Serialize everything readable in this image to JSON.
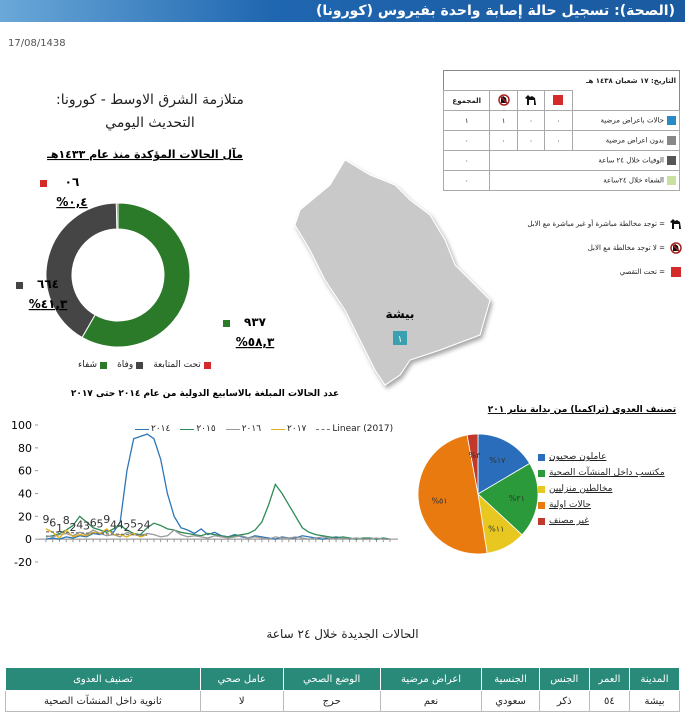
{
  "header": {
    "title": "(الصحة): تسجيل حالة إصابة واحدة بفيروس (كورونا)",
    "date": "17/08/1438"
  },
  "summary": {
    "title": "متلازمة الشرق الاوسط - كورونا:",
    "subtitle": "التحديث اليومي"
  },
  "status_table": {
    "date": "التاريخ: ١٧ شعبان ١٤٣٨ هـ",
    "total_header": "المجموع",
    "rows": [
      [
        "حالات باعراض مرضية",
        "٠",
        "٠",
        "١",
        "١"
      ],
      [
        "بدون اعراض مرضية",
        "٠",
        "٠",
        "٠",
        "٠"
      ],
      [
        "الوفيات خلال ٢٤ ساعة",
        "٠"
      ],
      [
        "الشفاء خلال ٢٤ساعة",
        "٠"
      ]
    ]
  },
  "icon_legend": [
    "= توجد مخالطة مباشرة أو غير مباشرة مع الابل",
    "= لا توجد مخالطة مع الابل",
    "= تحت التقصي"
  ],
  "map": {
    "city": "بيشة",
    "marker": "١"
  },
  "new_cases": {
    "title": "الحالات الجديدة خلال ٢٤ ساعة",
    "columns": [
      "المدينة",
      "العمر",
      "الجنس",
      "الجنسية",
      "اعراض مرضية",
      "الوضع الصحي",
      "عامل صحي",
      "تصنيف العدوى"
    ],
    "rows": [
      [
        "بيشة",
        "٥٤",
        "ذكر",
        "سعودي",
        "نعم",
        "حرج",
        "لا",
        "ثانوية داخل المنشآت الصحية"
      ]
    ]
  },
  "chart_data": [
    {
      "type": "donut",
      "title": "مآل الحالات المؤكدة منذ عام ١٤٣٣هـ",
      "categories": [
        "شفاء",
        "وفاة",
        "تحت المتابعة"
      ],
      "values": [
        937,
        664,
        6
      ],
      "value_labels": [
        "٩٣٧",
        "٦٦٤",
        "٠٦"
      ],
      "percents": [
        58.3,
        41.3,
        0.4
      ],
      "percent_labels": [
        "%٥٨,٣",
        "%٤١,٣",
        "%٠,٤"
      ],
      "colors": [
        "#2a7a2a",
        "#454545",
        "#d42a2a"
      ]
    },
    {
      "type": "line",
      "title": "عدد الحالات المبلغة بالاسابيع الدولية من عام ٢٠١٤ حتى ٢٠١٧",
      "x": [
        1,
        2,
        3,
        4,
        5,
        6,
        7,
        8,
        9,
        10,
        11,
        12,
        13,
        14,
        15,
        16,
        17,
        18,
        19,
        20,
        21,
        22,
        23,
        24,
        25,
        26,
        27,
        28,
        29,
        30,
        31,
        32,
        33,
        34,
        35,
        36,
        37,
        38,
        39,
        40,
        41,
        42,
        43,
        44,
        45,
        46,
        47,
        48,
        49,
        50,
        51,
        52
      ],
      "xlim": [
        1,
        52
      ],
      "ylim": [
        -20,
        100
      ],
      "yticks": [
        -20,
        0,
        20,
        40,
        60,
        80,
        100
      ],
      "grid": false,
      "series": [
        {
          "name": "٢٠١٤",
          "color": "#2e75b6",
          "values": [
            0,
            1,
            0,
            2,
            1,
            3,
            2,
            5,
            4,
            8,
            6,
            15,
            60,
            88,
            90,
            92,
            88,
            70,
            40,
            20,
            10,
            8,
            5,
            9,
            4,
            6,
            3,
            2,
            4,
            2,
            1,
            3,
            2,
            1,
            0,
            2,
            1,
            1,
            3,
            2,
            1,
            0,
            1,
            2,
            1,
            0,
            1,
            0,
            1,
            0,
            1,
            0
          ]
        },
        {
          "name": "٢٠١٥",
          "color": "#2e8b57",
          "values": [
            2,
            3,
            5,
            8,
            12,
            20,
            15,
            10,
            8,
            6,
            9,
            12,
            8,
            5,
            4,
            10,
            14,
            12,
            9,
            8,
            6,
            5,
            4,
            3,
            5,
            4,
            3,
            2,
            3,
            4,
            5,
            8,
            15,
            30,
            48,
            40,
            30,
            20,
            10,
            6,
            4,
            3,
            2,
            1,
            2,
            1,
            0,
            1,
            1,
            0,
            1,
            0
          ]
        },
        {
          "name": "٢٠١٦",
          "color": "#9a9a9a",
          "values": [
            3,
            2,
            4,
            5,
            3,
            6,
            4,
            8,
            5,
            3,
            4,
            2,
            6,
            4,
            3,
            5,
            4,
            2,
            3,
            8,
            4,
            2,
            3,
            2,
            1,
            3,
            2,
            1,
            2,
            3,
            1,
            2,
            1,
            0,
            2,
            1,
            1,
            2,
            1,
            0,
            1,
            2,
            1,
            0,
            1,
            0,
            1,
            0,
            0,
            1,
            0,
            0
          ]
        },
        {
          "name": "٢٠١٧",
          "color": "#e0b020",
          "labels": true,
          "values": [
            9,
            6,
            1,
            8,
            2,
            4,
            3,
            6,
            5,
            9,
            4,
            4,
            2,
            5,
            2,
            4,
            null,
            null,
            null,
            null,
            null,
            null,
            null,
            null,
            null,
            null,
            null,
            null,
            null,
            null,
            null,
            null,
            null,
            null,
            null,
            null,
            null,
            null,
            null,
            null,
            null,
            null,
            null,
            null,
            null,
            null,
            null,
            null,
            null,
            null,
            null,
            null
          ]
        },
        {
          "name": "Linear (2017)",
          "color": "#777777",
          "dashed": true,
          "values": [
            6.5,
            6.3,
            6.1,
            5.9,
            5.7,
            5.5,
            5.3,
            5.1,
            4.9,
            4.7,
            4.5,
            4.3,
            4.1,
            3.9,
            3.7,
            3.5,
            null,
            null,
            null,
            null,
            null,
            null,
            null,
            null,
            null,
            null,
            null,
            null,
            null,
            null,
            null,
            null,
            null,
            null,
            null,
            null,
            null,
            null,
            null,
            null,
            null,
            null,
            null,
            null,
            null,
            null,
            null,
            null,
            null,
            null,
            null,
            null
          ]
        }
      ]
    },
    {
      "type": "pie",
      "title": "تصنيف العدوى (تراكميا) من بداية يناير ٢٠١",
      "categories": [
        "عاملون صحيون",
        "مكتسب داخل المنشآت الصحية",
        "مخالطين منزليين",
        "حالات اولية",
        "غير مصنف"
      ],
      "values": [
        17,
        21,
        11,
        51,
        3
      ],
      "value_labels": [
        "%١٧",
        "%٢١",
        "%١١",
        "%٥١",
        "%٣"
      ],
      "colors": [
        "#2a6ebb",
        "#2a9a3a",
        "#e8c820",
        "#e87a10",
        "#c0392b"
      ]
    }
  ]
}
